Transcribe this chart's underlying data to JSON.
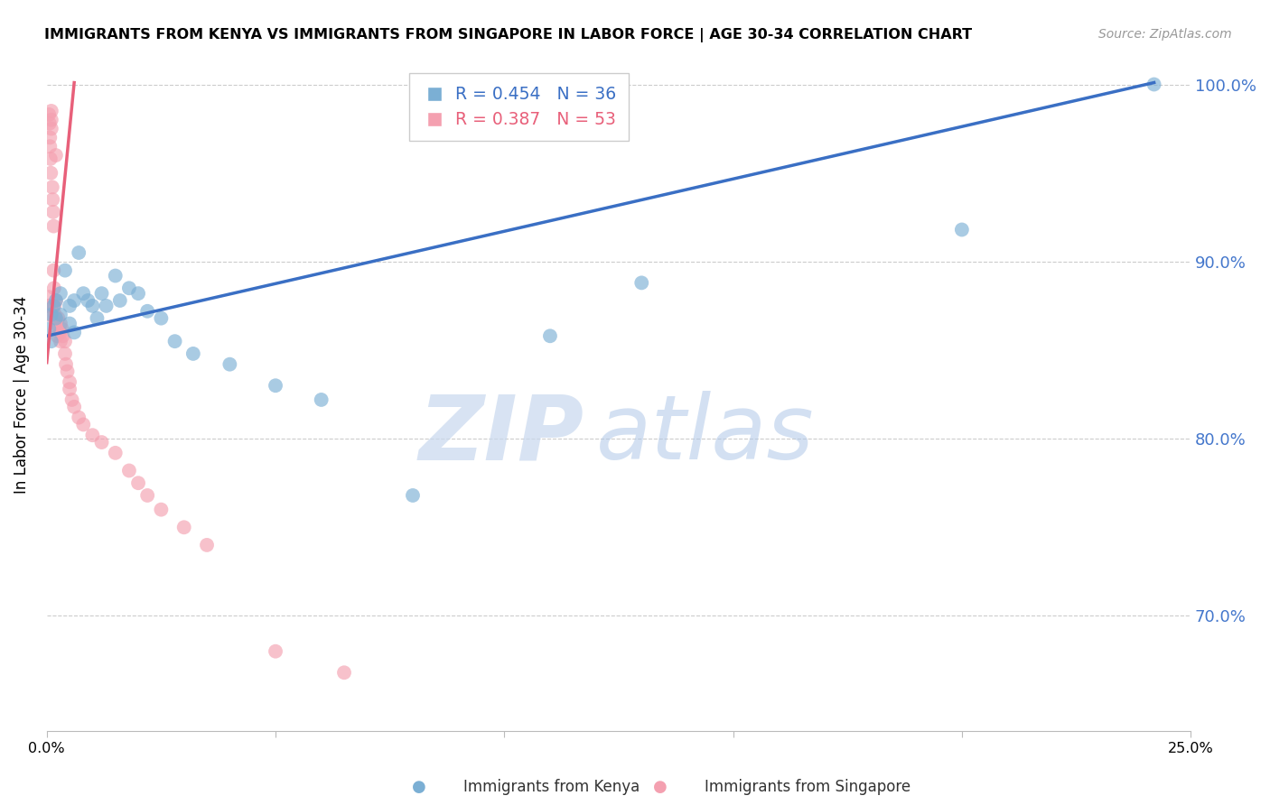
{
  "title": "IMMIGRANTS FROM KENYA VS IMMIGRANTS FROM SINGAPORE IN LABOR FORCE | AGE 30-34 CORRELATION CHART",
  "source": "Source: ZipAtlas.com",
  "ylabel": "In Labor Force | Age 30-34",
  "xlim": [
    0.0,
    0.25
  ],
  "ylim": [
    0.635,
    1.015
  ],
  "kenya_R": 0.454,
  "kenya_N": 36,
  "singapore_R": 0.387,
  "singapore_N": 53,
  "kenya_color": "#7BAFD4",
  "singapore_color": "#F4A0B0",
  "kenya_line_color": "#3A6FC4",
  "singapore_line_color": "#E8607A",
  "watermark_zip": "ZIP",
  "watermark_atlas": "atlas",
  "yticks": [
    0.7,
    0.8,
    0.9,
    1.0
  ],
  "ytick_labels": [
    "70.0%",
    "80.0%",
    "90.0%",
    "100.0%"
  ],
  "xticks": [
    0.0,
    0.05,
    0.1,
    0.15,
    0.2,
    0.25
  ],
  "xtick_labels": [
    "0.0%",
    "",
    "",
    "",
    "",
    "25.0%"
  ],
  "kenya_x": [
    0.0005,
    0.001,
    0.001,
    0.0015,
    0.002,
    0.002,
    0.003,
    0.003,
    0.004,
    0.005,
    0.005,
    0.006,
    0.006,
    0.007,
    0.008,
    0.009,
    0.01,
    0.011,
    0.012,
    0.013,
    0.015,
    0.016,
    0.018,
    0.02,
    0.022,
    0.025,
    0.028,
    0.032,
    0.04,
    0.05,
    0.06,
    0.08,
    0.11,
    0.13,
    0.2,
    0.242
  ],
  "kenya_y": [
    0.862,
    0.87,
    0.855,
    0.875,
    0.868,
    0.878,
    0.882,
    0.87,
    0.895,
    0.875,
    0.865,
    0.878,
    0.86,
    0.905,
    0.882,
    0.878,
    0.875,
    0.868,
    0.882,
    0.875,
    0.892,
    0.878,
    0.885,
    0.882,
    0.872,
    0.868,
    0.855,
    0.848,
    0.842,
    0.83,
    0.822,
    0.768,
    0.858,
    0.888,
    0.918,
    1.0
  ],
  "singapore_x": [
    0.0002,
    0.0003,
    0.0004,
    0.0005,
    0.0005,
    0.0006,
    0.0007,
    0.0007,
    0.0008,
    0.0009,
    0.001,
    0.001,
    0.001,
    0.0012,
    0.0013,
    0.0014,
    0.0015,
    0.0015,
    0.0016,
    0.0017,
    0.0018,
    0.002,
    0.002,
    0.002,
    0.0022,
    0.0023,
    0.0025,
    0.003,
    0.003,
    0.003,
    0.0033,
    0.0035,
    0.004,
    0.004,
    0.0042,
    0.0045,
    0.005,
    0.005,
    0.0055,
    0.006,
    0.007,
    0.008,
    0.01,
    0.012,
    0.015,
    0.018,
    0.02,
    0.022,
    0.025,
    0.03,
    0.035,
    0.05,
    0.065
  ],
  "singapore_y": [
    0.87,
    0.875,
    0.88,
    0.875,
    0.983,
    0.978,
    0.97,
    0.965,
    0.958,
    0.95,
    0.985,
    0.98,
    0.975,
    0.942,
    0.935,
    0.928,
    0.92,
    0.895,
    0.885,
    0.875,
    0.87,
    0.96,
    0.878,
    0.865,
    0.862,
    0.858,
    0.868,
    0.865,
    0.86,
    0.855,
    0.862,
    0.858,
    0.855,
    0.848,
    0.842,
    0.838,
    0.832,
    0.828,
    0.822,
    0.818,
    0.812,
    0.808,
    0.802,
    0.798,
    0.792,
    0.782,
    0.775,
    0.768,
    0.76,
    0.75,
    0.74,
    0.68,
    0.668
  ],
  "singapore_trend_x0": 0.0,
  "singapore_trend_x1": 0.006,
  "singapore_trend_y0": 0.843,
  "singapore_trend_y1": 1.001,
  "kenya_trend_x0": 0.0,
  "kenya_trend_x1": 0.242,
  "kenya_trend_y0": 0.858,
  "kenya_trend_y1": 1.001
}
